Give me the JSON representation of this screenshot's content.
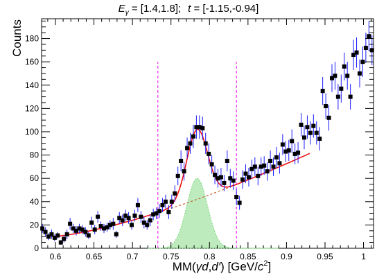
{
  "chart_data": {
    "type": "scatter",
    "title": "E_γ = [1.4,1.8];  t = [-1.15,-0.94]",
    "title_parts": {
      "e": "E",
      "gamma_sub": "γ",
      "e_range": " = [1.4,1.8];",
      "t": "t",
      "t_range": " = [-1.15,-0.94]"
    },
    "xlabel": "MM(γd,d′) [GeV/c²]",
    "xlabel_parts": {
      "prefix": "MM(",
      "gd": "γd",
      "comma": ",",
      "dprime": "d′",
      "suffix": ") [GeV/",
      "c": "c",
      "sq": "2",
      "close": "]"
    },
    "ylabel": "Counts",
    "xlim": [
      0.582,
      1.013
    ],
    "ylim": [
      0,
      197
    ],
    "x_ticks": [
      0.6,
      0.65,
      0.7,
      0.75,
      0.8,
      0.85,
      0.9,
      0.95,
      1
    ],
    "x_tick_labels": [
      "0.6",
      "0.65",
      "0.7",
      "0.75",
      "0.8",
      "0.85",
      "0.9",
      "0.95",
      "1"
    ],
    "y_ticks": [
      0,
      20,
      40,
      60,
      80,
      100,
      120,
      140,
      160,
      180
    ],
    "y_tick_labels": [
      "0",
      "20",
      "40",
      "60",
      "80",
      "100",
      "120",
      "140",
      "160",
      "180"
    ],
    "grid": false,
    "cut_lines_x": [
      0.733,
      0.835
    ],
    "colors": {
      "points": "#000000",
      "error_bars": "#1a1aff",
      "fit": "#ee1111",
      "background": "#c55a2a",
      "signal_fill": "#6fd36f",
      "cut_lines": "#ee00ee"
    },
    "points": [
      {
        "x": 0.583,
        "y": 17,
        "e": 4
      },
      {
        "x": 0.587,
        "y": 14,
        "e": 4
      },
      {
        "x": 0.591,
        "y": 10,
        "e": 3
      },
      {
        "x": 0.595,
        "y": 12,
        "e": 4
      },
      {
        "x": 0.599,
        "y": 9,
        "e": 3
      },
      {
        "x": 0.603,
        "y": 11,
        "e": 3
      },
      {
        "x": 0.607,
        "y": 5,
        "e": 2
      },
      {
        "x": 0.611,
        "y": 8,
        "e": 3
      },
      {
        "x": 0.615,
        "y": 12,
        "e": 4
      },
      {
        "x": 0.619,
        "y": 21,
        "e": 5
      },
      {
        "x": 0.623,
        "y": 17,
        "e": 4
      },
      {
        "x": 0.627,
        "y": 15,
        "e": 4
      },
      {
        "x": 0.631,
        "y": 17,
        "e": 4
      },
      {
        "x": 0.635,
        "y": 16,
        "e": 4
      },
      {
        "x": 0.639,
        "y": 14,
        "e": 4
      },
      {
        "x": 0.643,
        "y": 11,
        "e": 3
      },
      {
        "x": 0.647,
        "y": 22,
        "e": 5
      },
      {
        "x": 0.651,
        "y": 16,
        "e": 4
      },
      {
        "x": 0.655,
        "y": 27,
        "e": 5
      },
      {
        "x": 0.659,
        "y": 19,
        "e": 4
      },
      {
        "x": 0.663,
        "y": 17,
        "e": 4
      },
      {
        "x": 0.667,
        "y": 18,
        "e": 4
      },
      {
        "x": 0.671,
        "y": 20,
        "e": 4
      },
      {
        "x": 0.675,
        "y": 21,
        "e": 5
      },
      {
        "x": 0.679,
        "y": 12,
        "e": 3
      },
      {
        "x": 0.683,
        "y": 26,
        "e": 5
      },
      {
        "x": 0.687,
        "y": 24,
        "e": 5
      },
      {
        "x": 0.691,
        "y": 28,
        "e": 5
      },
      {
        "x": 0.695,
        "y": 26,
        "e": 5
      },
      {
        "x": 0.699,
        "y": 20,
        "e": 4
      },
      {
        "x": 0.703,
        "y": 28,
        "e": 5
      },
      {
        "x": 0.707,
        "y": 37,
        "e": 6
      },
      {
        "x": 0.711,
        "y": 27,
        "e": 5
      },
      {
        "x": 0.715,
        "y": 22,
        "e": 5
      },
      {
        "x": 0.719,
        "y": 20,
        "e": 4
      },
      {
        "x": 0.723,
        "y": 24,
        "e": 5
      },
      {
        "x": 0.727,
        "y": 29,
        "e": 5
      },
      {
        "x": 0.731,
        "y": 30,
        "e": 5
      },
      {
        "x": 0.735,
        "y": 32,
        "e": 6
      },
      {
        "x": 0.739,
        "y": 37,
        "e": 6
      },
      {
        "x": 0.743,
        "y": 40,
        "e": 6
      },
      {
        "x": 0.747,
        "y": 31,
        "e": 6
      },
      {
        "x": 0.751,
        "y": 40,
        "e": 6
      },
      {
        "x": 0.755,
        "y": 47,
        "e": 7
      },
      {
        "x": 0.759,
        "y": 62,
        "e": 8
      },
      {
        "x": 0.763,
        "y": 75,
        "e": 9
      },
      {
        "x": 0.767,
        "y": 66,
        "e": 8
      },
      {
        "x": 0.771,
        "y": 86,
        "e": 9
      },
      {
        "x": 0.775,
        "y": 90,
        "e": 9
      },
      {
        "x": 0.779,
        "y": 96,
        "e": 10
      },
      {
        "x": 0.783,
        "y": 104,
        "e": 10
      },
      {
        "x": 0.787,
        "y": 104,
        "e": 10
      },
      {
        "x": 0.791,
        "y": 103,
        "e": 10
      },
      {
        "x": 0.795,
        "y": 90,
        "e": 9
      },
      {
        "x": 0.799,
        "y": 81,
        "e": 9
      },
      {
        "x": 0.803,
        "y": 72,
        "e": 8
      },
      {
        "x": 0.807,
        "y": 63,
        "e": 8
      },
      {
        "x": 0.811,
        "y": 60,
        "e": 8
      },
      {
        "x": 0.815,
        "y": 61,
        "e": 8
      },
      {
        "x": 0.819,
        "y": 56,
        "e": 7
      },
      {
        "x": 0.823,
        "y": 75,
        "e": 9
      },
      {
        "x": 0.827,
        "y": 60,
        "e": 8
      },
      {
        "x": 0.831,
        "y": 58,
        "e": 8
      },
      {
        "x": 0.835,
        "y": 44,
        "e": 7
      },
      {
        "x": 0.839,
        "y": 39,
        "e": 6
      },
      {
        "x": 0.843,
        "y": 59,
        "e": 8
      },
      {
        "x": 0.847,
        "y": 64,
        "e": 8
      },
      {
        "x": 0.851,
        "y": 61,
        "e": 8
      },
      {
        "x": 0.855,
        "y": 68,
        "e": 8
      },
      {
        "x": 0.859,
        "y": 70,
        "e": 8
      },
      {
        "x": 0.863,
        "y": 62,
        "e": 8
      },
      {
        "x": 0.867,
        "y": 70,
        "e": 8
      },
      {
        "x": 0.871,
        "y": 71,
        "e": 8
      },
      {
        "x": 0.875,
        "y": 66,
        "e": 8
      },
      {
        "x": 0.879,
        "y": 75,
        "e": 9
      },
      {
        "x": 0.883,
        "y": 70,
        "e": 8
      },
      {
        "x": 0.887,
        "y": 78,
        "e": 9
      },
      {
        "x": 0.891,
        "y": 73,
        "e": 9
      },
      {
        "x": 0.895,
        "y": 89,
        "e": 9
      },
      {
        "x": 0.899,
        "y": 83,
        "e": 9
      },
      {
        "x": 0.903,
        "y": 84,
        "e": 9
      },
      {
        "x": 0.907,
        "y": 92,
        "e": 10
      },
      {
        "x": 0.911,
        "y": 81,
        "e": 9
      },
      {
        "x": 0.915,
        "y": 82,
        "e": 9
      },
      {
        "x": 0.919,
        "y": 106,
        "e": 10
      },
      {
        "x": 0.923,
        "y": 95,
        "e": 10
      },
      {
        "x": 0.927,
        "y": 104,
        "e": 10
      },
      {
        "x": 0.931,
        "y": 99,
        "e": 10
      },
      {
        "x": 0.935,
        "y": 105,
        "e": 10
      },
      {
        "x": 0.939,
        "y": 99,
        "e": 10
      },
      {
        "x": 0.943,
        "y": 94,
        "e": 10
      },
      {
        "x": 0.947,
        "y": 135,
        "e": 12
      },
      {
        "x": 0.951,
        "y": 122,
        "e": 11
      },
      {
        "x": 0.955,
        "y": 112,
        "e": 11
      },
      {
        "x": 0.959,
        "y": 146,
        "e": 12
      },
      {
        "x": 0.963,
        "y": 148,
        "e": 12
      },
      {
        "x": 0.967,
        "y": 130,
        "e": 11
      },
      {
        "x": 0.971,
        "y": 137,
        "e": 12
      },
      {
        "x": 0.975,
        "y": 156,
        "e": 12
      },
      {
        "x": 0.979,
        "y": 148,
        "e": 12
      },
      {
        "x": 0.983,
        "y": 130,
        "e": 11
      },
      {
        "x": 0.987,
        "y": 166,
        "e": 13
      },
      {
        "x": 0.991,
        "y": 168,
        "e": 13
      },
      {
        "x": 0.995,
        "y": 150,
        "e": 12
      },
      {
        "x": 0.999,
        "y": 160,
        "e": 13
      },
      {
        "x": 1.003,
        "y": 172,
        "e": 13
      },
      {
        "x": 1.007,
        "y": 182,
        "e": 13
      },
      {
        "x": 1.011,
        "y": 170,
        "e": 13
      }
    ],
    "background_fit": {
      "x_range": [
        0.595,
        0.93
      ],
      "a": 10,
      "b": 330,
      "x0": 0.595,
      "exp": 1.4,
      "drawn_dashed_range": [
        0.745,
        0.838
      ]
    },
    "signal_fit": {
      "amplitude": 60,
      "mean": 0.784,
      "sigma": 0.0135,
      "x_range": [
        0.72,
        0.89
      ]
    }
  }
}
